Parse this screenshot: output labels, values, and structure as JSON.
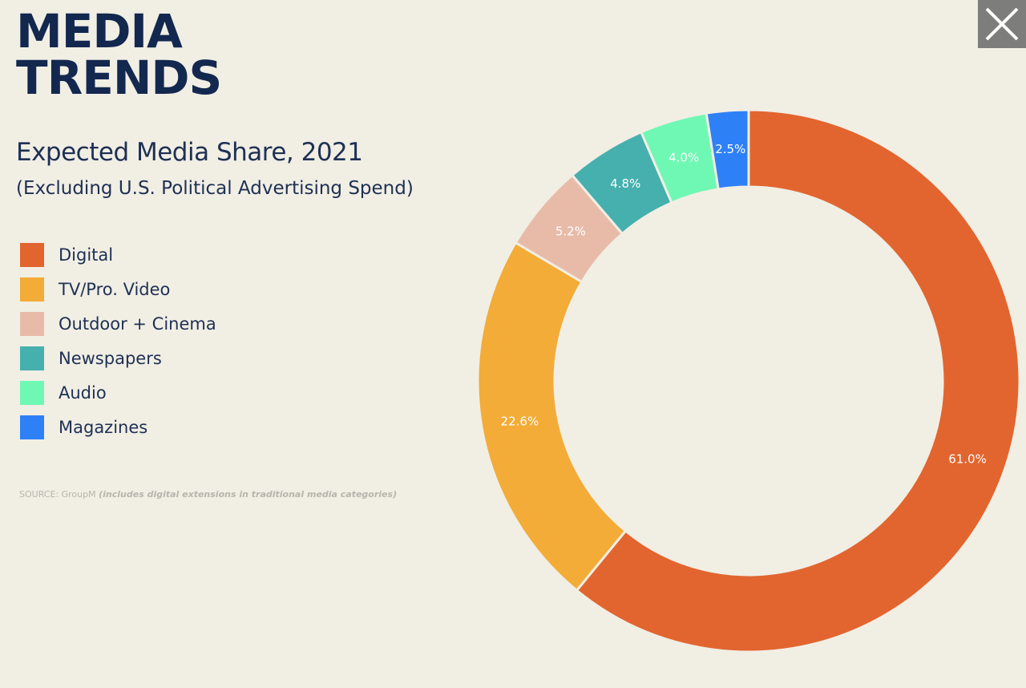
{
  "header": {
    "title_line1": "MEDIA",
    "title_line2": "TRENDS"
  },
  "subtitle": "Expected Media Share, 2021",
  "subnote": "(Excluding U.S. Political Advertising Spend)",
  "source": {
    "prefix": "SOURCE: GroupM ",
    "note": "(includes digital extensions in traditional media categories)"
  },
  "close_icon": "close-icon",
  "chart_data": {
    "type": "pie",
    "donut": true,
    "title": "Expected Media Share, 2021",
    "subtitle": "(Excluding U.S. Political Advertising Spend)",
    "legend_position": "left",
    "categories": [
      "Digital",
      "TV/Pro. Video",
      "Outdoor + Cinema",
      "Newspapers",
      "Audio",
      "Magazines"
    ],
    "values": [
      61.0,
      22.6,
      5.2,
      4.8,
      4.0,
      2.5
    ],
    "labels": [
      "61.0%",
      "22.6%",
      "5.2%",
      "4.8%",
      "4.0%",
      "2.5%"
    ],
    "colors": [
      "#e2652f",
      "#f2ac37",
      "#e8bba9",
      "#45b0ae",
      "#6ff8b4",
      "#2e80f7"
    ]
  }
}
